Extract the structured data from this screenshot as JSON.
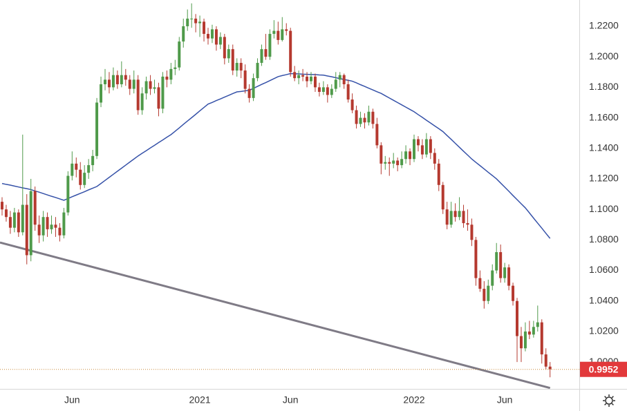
{
  "chart_data": {
    "type": "candlestick",
    "categories": [
      null,
      null,
      null,
      null,
      null,
      null,
      null,
      null,
      null,
      null,
      null,
      null,
      null,
      null,
      null,
      null,
      null,
      "Jun",
      null,
      null,
      null,
      null,
      null,
      null,
      null,
      null,
      null,
      null,
      null,
      null,
      null,
      null,
      null,
      null,
      null,
      null,
      null,
      null,
      null,
      null,
      null,
      null,
      null,
      null,
      null,
      null,
      null,
      null,
      "2021",
      null,
      null,
      null,
      null,
      null,
      null,
      null,
      null,
      null,
      null,
      null,
      null,
      null,
      null,
      null,
      null,
      null,
      null,
      null,
      null,
      null,
      "Jun",
      null,
      null,
      null,
      null,
      null,
      null,
      null,
      null,
      null,
      null,
      null,
      null,
      null,
      null,
      null,
      null,
      null,
      null,
      null,
      null,
      null,
      null,
      null,
      null,
      null,
      null,
      null,
      null,
      null,
      "2022",
      null,
      null,
      null,
      null,
      null,
      null,
      null,
      null,
      null,
      null,
      null,
      null,
      null,
      null,
      null,
      null,
      null,
      null,
      null,
      null,
      null,
      "Jun",
      null,
      null,
      null,
      null,
      null,
      null,
      null,
      null,
      null,
      null,
      null
    ],
    "ohlc": [
      [
        1.105,
        1.108,
        1.096,
        1.1
      ],
      [
        1.1,
        1.103,
        1.092,
        1.095
      ],
      [
        1.095,
        1.099,
        1.084,
        1.088
      ],
      [
        1.088,
        1.101,
        1.085,
        1.098
      ],
      [
        1.098,
        1.1,
        1.082,
        1.085
      ],
      [
        1.085,
        1.149,
        1.083,
        1.103
      ],
      [
        1.103,
        1.11,
        1.064,
        1.07
      ],
      [
        1.07,
        1.12,
        1.066,
        1.112
      ],
      [
        1.112,
        1.115,
        1.086,
        1.09
      ],
      [
        1.09,
        1.096,
        1.078,
        1.083
      ],
      [
        1.083,
        1.099,
        1.079,
        1.095
      ],
      [
        1.095,
        1.098,
        1.082,
        1.087
      ],
      [
        1.087,
        1.096,
        1.084,
        1.09
      ],
      [
        1.09,
        1.095,
        1.082,
        1.088
      ],
      [
        1.088,
        1.091,
        1.079,
        1.083
      ],
      [
        1.083,
        1.101,
        1.081,
        1.098
      ],
      [
        1.098,
        1.125,
        1.096,
        1.122
      ],
      [
        1.122,
        1.138,
        1.119,
        1.13
      ],
      [
        1.13,
        1.134,
        1.121,
        1.126
      ],
      [
        1.126,
        1.131,
        1.113,
        1.116
      ],
      [
        1.116,
        1.129,
        1.114,
        1.124
      ],
      [
        1.124,
        1.133,
        1.12,
        1.129
      ],
      [
        1.129,
        1.139,
        1.125,
        1.135
      ],
      [
        1.135,
        1.173,
        1.133,
        1.17
      ],
      [
        1.17,
        1.187,
        1.167,
        1.182
      ],
      [
        1.182,
        1.192,
        1.178,
        1.185
      ],
      [
        1.185,
        1.19,
        1.176,
        1.18
      ],
      [
        1.18,
        1.193,
        1.178,
        1.188
      ],
      [
        1.188,
        1.191,
        1.179,
        1.182
      ],
      [
        1.182,
        1.197,
        1.18,
        1.188
      ],
      [
        1.188,
        1.192,
        1.181,
        1.185
      ],
      [
        1.185,
        1.188,
        1.175,
        1.179
      ],
      [
        1.179,
        1.191,
        1.176,
        1.185
      ],
      [
        1.185,
        1.188,
        1.162,
        1.165
      ],
      [
        1.165,
        1.18,
        1.162,
        1.176
      ],
      [
        1.176,
        1.187,
        1.172,
        1.184
      ],
      [
        1.184,
        1.188,
        1.175,
        1.179
      ],
      [
        1.179,
        1.185,
        1.176,
        1.18
      ],
      [
        1.18,
        1.183,
        1.161,
        1.166
      ],
      [
        1.166,
        1.19,
        1.163,
        1.187
      ],
      [
        1.187,
        1.191,
        1.18,
        1.185
      ],
      [
        1.185,
        1.196,
        1.182,
        1.192
      ],
      [
        1.192,
        1.198,
        1.188,
        1.193
      ],
      [
        1.193,
        1.213,
        1.191,
        1.21
      ],
      [
        1.21,
        1.225,
        1.206,
        1.22
      ],
      [
        1.22,
        1.231,
        1.217,
        1.225
      ],
      [
        1.225,
        1.235,
        1.219,
        1.225
      ],
      [
        1.225,
        1.228,
        1.216,
        1.222
      ],
      [
        1.222,
        1.227,
        1.213,
        1.223
      ],
      [
        1.223,
        1.225,
        1.21,
        1.215
      ],
      [
        1.215,
        1.219,
        1.208,
        1.212
      ],
      [
        1.212,
        1.221,
        1.209,
        1.218
      ],
      [
        1.218,
        1.22,
        1.204,
        1.208
      ],
      [
        1.208,
        1.216,
        1.205,
        1.213
      ],
      [
        1.213,
        1.215,
        1.195,
        1.199
      ],
      [
        1.199,
        1.208,
        1.196,
        1.205
      ],
      [
        1.205,
        1.208,
        1.188,
        1.191
      ],
      [
        1.191,
        1.199,
        1.187,
        1.196
      ],
      [
        1.196,
        1.199,
        1.186,
        1.191
      ],
      [
        1.191,
        1.195,
        1.176,
        1.179
      ],
      [
        1.179,
        1.182,
        1.17,
        1.173
      ],
      [
        1.173,
        1.189,
        1.171,
        1.186
      ],
      [
        1.186,
        1.199,
        1.184,
        1.196
      ],
      [
        1.196,
        1.208,
        1.194,
        1.205
      ],
      [
        1.205,
        1.215,
        1.198,
        1.2
      ],
      [
        1.2,
        1.218,
        1.198,
        1.215
      ],
      [
        1.215,
        1.224,
        1.212,
        1.217
      ],
      [
        1.217,
        1.223,
        1.208,
        1.211
      ],
      [
        1.211,
        1.226,
        1.21,
        1.218
      ],
      [
        1.218,
        1.222,
        1.214,
        1.217
      ],
      [
        1.217,
        1.219,
        1.187,
        1.19
      ],
      [
        1.19,
        1.194,
        1.184,
        1.186
      ],
      [
        1.186,
        1.191,
        1.182,
        1.188
      ],
      [
        1.188,
        1.192,
        1.184,
        1.187
      ],
      [
        1.187,
        1.19,
        1.18,
        1.184
      ],
      [
        1.184,
        1.19,
        1.182,
        1.187
      ],
      [
        1.187,
        1.189,
        1.177,
        1.18
      ],
      [
        1.18,
        1.183,
        1.174,
        1.177
      ],
      [
        1.177,
        1.184,
        1.175,
        1.18
      ],
      [
        1.18,
        1.182,
        1.17,
        1.175
      ],
      [
        1.175,
        1.182,
        1.173,
        1.179
      ],
      [
        1.179,
        1.19,
        1.177,
        1.185
      ],
      [
        1.185,
        1.19,
        1.18,
        1.188
      ],
      [
        1.188,
        1.189,
        1.179,
        1.182
      ],
      [
        1.182,
        1.185,
        1.17,
        1.172
      ],
      [
        1.172,
        1.176,
        1.163,
        1.165
      ],
      [
        1.165,
        1.168,
        1.153,
        1.156
      ],
      [
        1.156,
        1.164,
        1.154,
        1.16
      ],
      [
        1.16,
        1.163,
        1.153,
        1.157
      ],
      [
        1.157,
        1.168,
        1.155,
        1.164
      ],
      [
        1.164,
        1.166,
        1.153,
        1.156
      ],
      [
        1.156,
        1.16,
        1.14,
        1.142
      ],
      [
        1.142,
        1.144,
        1.123,
        1.13
      ],
      [
        1.13,
        1.135,
        1.126,
        1.131
      ],
      [
        1.131,
        1.134,
        1.122,
        1.13
      ],
      [
        1.13,
        1.137,
        1.127,
        1.132
      ],
      [
        1.132,
        1.134,
        1.125,
        1.129
      ],
      [
        1.129,
        1.138,
        1.127,
        1.133
      ],
      [
        1.133,
        1.142,
        1.13,
        1.138
      ],
      [
        1.138,
        1.14,
        1.129,
        1.133
      ],
      [
        1.133,
        1.149,
        1.131,
        1.146
      ],
      [
        1.146,
        1.148,
        1.138,
        1.142
      ],
      [
        1.142,
        1.146,
        1.133,
        1.136
      ],
      [
        1.136,
        1.15,
        1.134,
        1.146
      ],
      [
        1.146,
        1.148,
        1.133,
        1.137
      ],
      [
        1.137,
        1.14,
        1.126,
        1.13
      ],
      [
        1.13,
        1.133,
        1.112,
        1.116
      ],
      [
        1.116,
        1.118,
        1.097,
        1.1
      ],
      [
        1.1,
        1.105,
        1.087,
        1.09
      ],
      [
        1.09,
        1.105,
        1.088,
        1.099
      ],
      [
        1.099,
        1.104,
        1.092,
        1.095
      ],
      [
        1.095,
        1.108,
        1.093,
        1.099
      ],
      [
        1.099,
        1.103,
        1.088,
        1.091
      ],
      [
        1.091,
        1.1,
        1.086,
        1.09
      ],
      [
        1.09,
        1.094,
        1.076,
        1.08
      ],
      [
        1.08,
        1.082,
        1.05,
        1.055
      ],
      [
        1.055,
        1.06,
        1.046,
        1.048
      ],
      [
        1.048,
        1.053,
        1.035,
        1.04
      ],
      [
        1.04,
        1.054,
        1.038,
        1.05
      ],
      [
        1.05,
        1.064,
        1.047,
        1.06
      ],
      [
        1.06,
        1.078,
        1.058,
        1.072
      ],
      [
        1.072,
        1.077,
        1.052,
        1.055
      ],
      [
        1.055,
        1.065,
        1.052,
        1.062
      ],
      [
        1.062,
        1.064,
        1.047,
        1.05
      ],
      [
        1.05,
        1.052,
        1.037,
        1.04
      ],
      [
        1.04,
        1.042,
        1.0,
        1.017
      ],
      [
        1.017,
        1.023,
        1.0,
        1.009
      ],
      [
        1.009,
        1.026,
        1.007,
        1.02
      ],
      [
        1.02,
        1.027,
        1.015,
        1.018
      ],
      [
        1.018,
        1.027,
        1.016,
        1.023
      ],
      [
        1.023,
        1.037,
        1.02,
        1.026
      ],
      [
        1.026,
        1.028,
        0.999,
        1.005
      ],
      [
        1.005,
        1.009,
        0.995,
        0.997
      ],
      [
        0.997,
        1.0,
        0.99,
        0.9952
      ]
    ],
    "up_color": "#4f9a4a",
    "down_color": "#b5392f",
    "moving_average": {
      "color": "#3551a8",
      "values": [
        1.117,
        1.1164,
        1.1159,
        1.1153,
        1.1147,
        1.1141,
        1.1136,
        1.113,
        1.1121,
        1.1113,
        1.1104,
        1.1095,
        1.1086,
        1.1078,
        1.1069,
        1.106,
        1.1071,
        1.1083,
        1.1094,
        1.1105,
        1.1116,
        1.1128,
        1.1139,
        1.115,
        1.117,
        1.119,
        1.121,
        1.123,
        1.125,
        1.127,
        1.129,
        1.131,
        1.133,
        1.135,
        1.1368,
        1.1385,
        1.1403,
        1.142,
        1.1438,
        1.1455,
        1.1473,
        1.149,
        1.1512,
        1.1534,
        1.1557,
        1.1579,
        1.1601,
        1.1623,
        1.1646,
        1.1668,
        1.169,
        1.1701,
        1.1713,
        1.1724,
        1.1736,
        1.1747,
        1.1759,
        1.177,
        1.1773,
        1.1777,
        1.178,
        1.1793,
        1.1806,
        1.1819,
        1.1831,
        1.1844,
        1.1857,
        1.187,
        1.1877,
        1.1883,
        1.189,
        1.1889,
        1.1888,
        1.1886,
        1.1885,
        1.1884,
        1.1883,
        1.1881,
        1.188,
        1.1874,
        1.1869,
        1.1863,
        1.1857,
        1.1851,
        1.1846,
        1.184,
        1.1829,
        1.1817,
        1.1806,
        1.1794,
        1.1783,
        1.1771,
        1.176,
        1.1745,
        1.173,
        1.1715,
        1.17,
        1.1685,
        1.167,
        1.1655,
        1.164,
        1.1621,
        1.1603,
        1.1584,
        1.1566,
        1.1547,
        1.1529,
        1.151,
        1.1484,
        1.1459,
        1.1433,
        1.1407,
        1.1381,
        1.1356,
        1.133,
        1.1308,
        1.1287,
        1.1265,
        1.1243,
        1.1222,
        1.12,
        1.1173,
        1.1146,
        1.1119,
        1.1091,
        1.1064,
        1.1037,
        1.101,
        1.0977,
        1.0943,
        1.091,
        1.0877,
        1.0843,
        1.081
      ]
    },
    "trendline": {
      "color": "#7f7b86",
      "values": [
        1.0783,
        0.983
      ]
    },
    "last_price": {
      "value": 0.9952,
      "color": "#e2393b"
    },
    "ylim": [
      0.9824,
      1.2372
    ],
    "yticks": [
      {
        "value": 1.0,
        "label": "1.0000"
      },
      {
        "value": 1.02,
        "label": "1.0200"
      },
      {
        "value": 1.04,
        "label": "1.0400"
      },
      {
        "value": 1.06,
        "label": "1.0600"
      },
      {
        "value": 1.08,
        "label": "1.0800"
      },
      {
        "value": 1.1,
        "label": "1.1000"
      },
      {
        "value": 1.12,
        "label": "1.1200"
      },
      {
        "value": 1.14,
        "label": "1.1400"
      },
      {
        "value": 1.16,
        "label": "1.1600"
      },
      {
        "value": 1.18,
        "label": "1.1800"
      },
      {
        "value": 1.2,
        "label": "1.2000"
      },
      {
        "value": 1.22,
        "label": "1.2200"
      }
    ]
  }
}
